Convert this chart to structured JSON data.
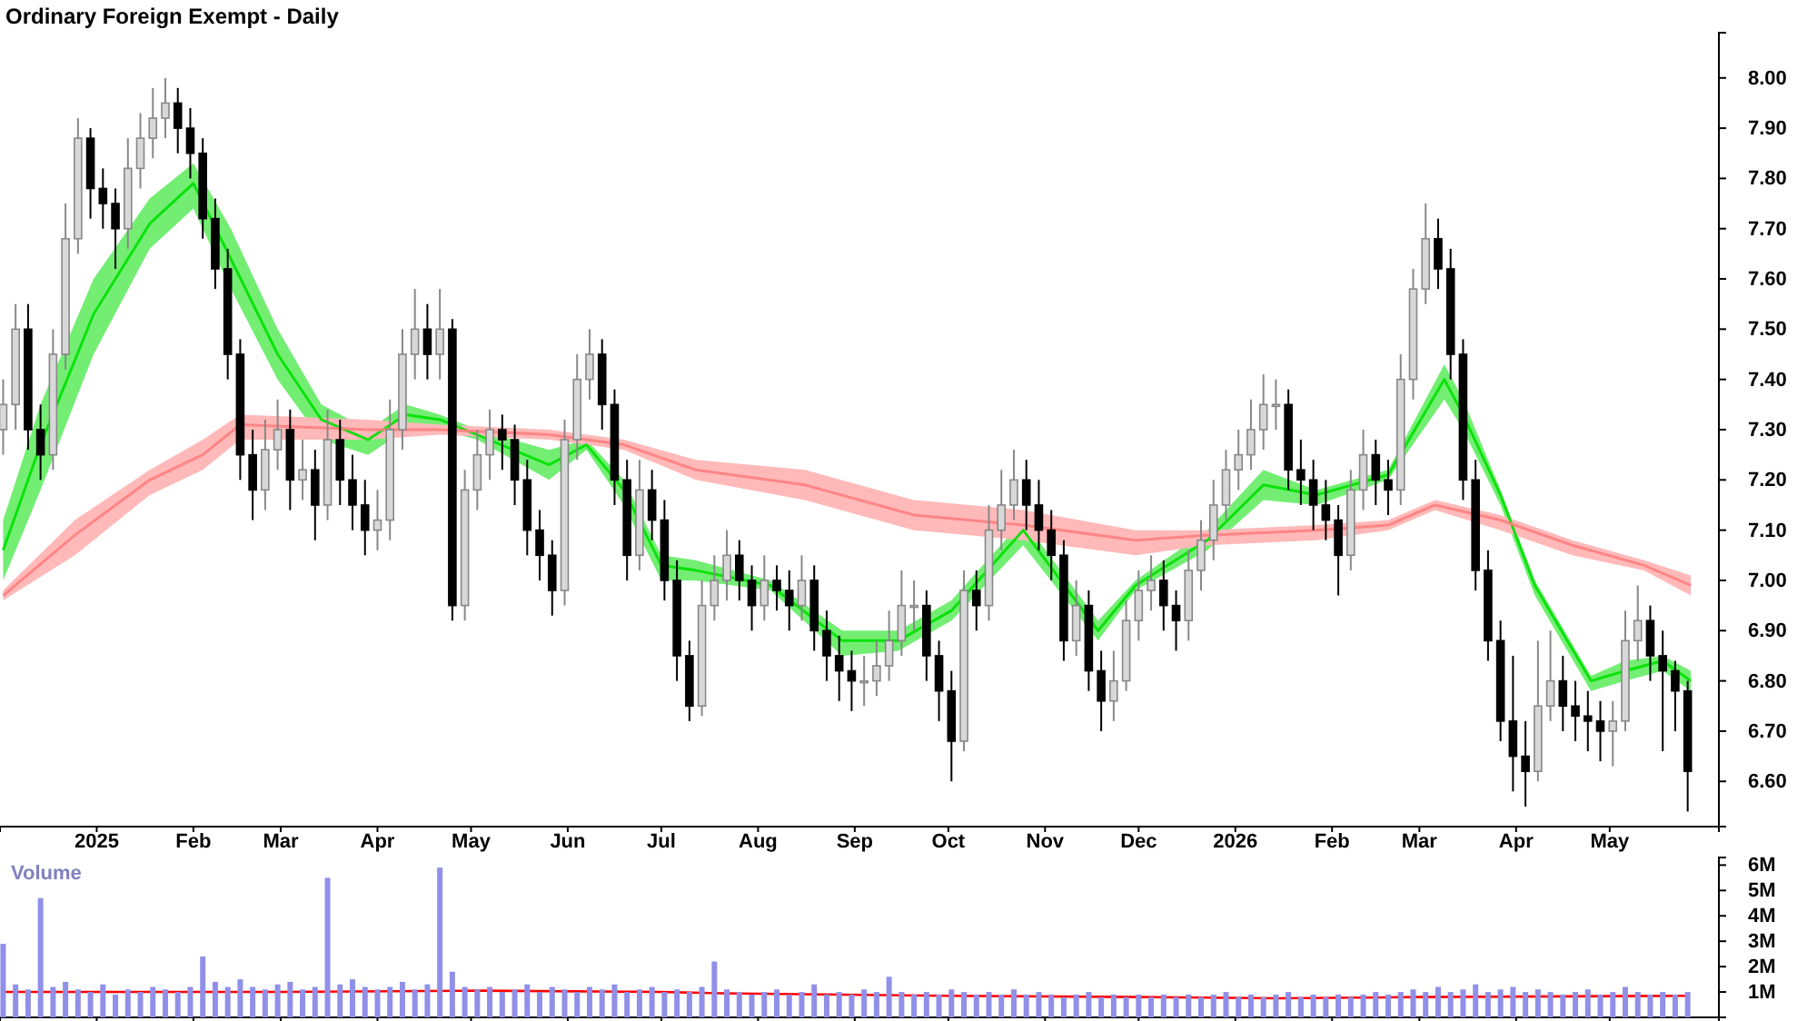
{
  "chart_data": [
    {
      "type": "candlestick",
      "title": "Ordinary Foreign Exempt - Daily",
      "x": [
        "2024-12-02",
        "2024-12-06",
        "2024-12-10",
        "2024-12-14",
        "2024-12-18",
        "2024-12-22",
        "2024-12-26",
        "2024-12-30",
        "2025-01-03",
        "2025-01-07",
        "2025-01-11",
        "2025-01-15",
        "2025-01-19",
        "2025-01-23",
        "2025-01-27",
        "2025-01-31",
        "2025-02-04",
        "2025-02-08",
        "2025-02-12",
        "2025-02-16",
        "2025-02-20",
        "2025-02-24",
        "2025-02-28",
        "2025-03-04",
        "2025-03-08",
        "2025-03-12",
        "2025-03-16",
        "2025-03-20",
        "2025-03-24",
        "2025-03-28",
        "2025-04-01",
        "2025-04-05",
        "2025-04-09",
        "2025-04-13",
        "2025-04-17",
        "2025-04-21",
        "2025-04-25",
        "2025-04-29",
        "2025-05-03",
        "2025-05-07",
        "2025-05-11",
        "2025-05-15",
        "2025-05-19",
        "2025-05-23",
        "2025-05-27",
        "2025-05-31",
        "2025-06-04",
        "2025-06-08",
        "2025-06-12",
        "2025-06-16",
        "2025-06-20",
        "2025-06-24",
        "2025-06-28",
        "2025-07-02",
        "2025-07-06",
        "2025-07-10",
        "2025-07-14",
        "2025-07-18",
        "2025-07-22",
        "2025-07-26",
        "2025-07-30",
        "2025-08-03",
        "2025-08-07",
        "2025-08-11",
        "2025-08-15",
        "2025-08-19",
        "2025-08-23",
        "2025-08-27",
        "2025-08-31",
        "2025-09-04",
        "2025-09-08",
        "2025-09-12",
        "2025-09-16",
        "2025-09-20",
        "2025-09-24",
        "2025-09-28",
        "2025-10-02",
        "2025-10-06",
        "2025-10-10",
        "2025-10-14",
        "2025-10-18",
        "2025-10-22",
        "2025-10-26",
        "2025-10-30",
        "2025-11-03",
        "2025-11-07",
        "2025-11-11",
        "2025-11-15",
        "2025-11-19",
        "2025-11-23",
        "2025-11-27",
        "2025-12-01",
        "2025-12-05",
        "2025-12-09",
        "2025-12-13",
        "2025-12-17",
        "2025-12-21",
        "2025-12-25",
        "2025-12-29",
        "2026-01-02",
        "2026-01-06",
        "2026-01-10",
        "2026-01-14",
        "2026-01-18",
        "2026-01-22",
        "2026-01-26",
        "2026-01-30",
        "2026-02-03",
        "2026-02-07",
        "2026-02-11",
        "2026-02-15",
        "2026-02-19",
        "2026-02-23",
        "2026-02-27",
        "2026-03-03",
        "2026-03-07",
        "2026-03-11",
        "2026-03-15",
        "2026-03-19",
        "2026-03-23",
        "2026-03-27",
        "2026-03-31",
        "2026-04-04",
        "2026-04-08",
        "2026-04-12",
        "2026-04-16",
        "2026-04-20",
        "2026-04-24",
        "2026-04-28",
        "2026-05-02",
        "2026-05-06",
        "2026-05-10",
        "2026-05-14",
        "2026-05-18",
        "2026-05-22",
        "2026-05-26"
      ],
      "ohlc": [
        [
          7.3,
          7.4,
          7.25,
          7.35
        ],
        [
          7.35,
          7.55,
          7.3,
          7.5
        ],
        [
          7.5,
          7.55,
          7.26,
          7.3
        ],
        [
          7.3,
          7.35,
          7.2,
          7.25
        ],
        [
          7.25,
          7.5,
          7.22,
          7.45
        ],
        [
          7.45,
          7.75,
          7.42,
          7.68
        ],
        [
          7.68,
          7.92,
          7.65,
          7.88
        ],
        [
          7.88,
          7.9,
          7.72,
          7.78
        ],
        [
          7.78,
          7.82,
          7.7,
          7.75
        ],
        [
          7.75,
          7.78,
          7.62,
          7.7
        ],
        [
          7.7,
          7.88,
          7.66,
          7.82
        ],
        [
          7.82,
          7.93,
          7.78,
          7.88
        ],
        [
          7.88,
          7.98,
          7.84,
          7.92
        ],
        [
          7.92,
          8.0,
          7.88,
          7.95
        ],
        [
          7.95,
          7.98,
          7.85,
          7.9
        ],
        [
          7.9,
          7.94,
          7.8,
          7.85
        ],
        [
          7.85,
          7.88,
          7.68,
          7.72
        ],
        [
          7.72,
          7.76,
          7.58,
          7.62
        ],
        [
          7.62,
          7.66,
          7.4,
          7.45
        ],
        [
          7.45,
          7.48,
          7.2,
          7.25
        ],
        [
          7.25,
          7.3,
          7.12,
          7.18
        ],
        [
          7.18,
          7.32,
          7.14,
          7.26
        ],
        [
          7.26,
          7.36,
          7.22,
          7.3
        ],
        [
          7.3,
          7.34,
          7.14,
          7.2
        ],
        [
          7.2,
          7.28,
          7.16,
          7.22
        ],
        [
          7.22,
          7.26,
          7.08,
          7.15
        ],
        [
          7.15,
          7.34,
          7.12,
          7.28
        ],
        [
          7.28,
          7.32,
          7.15,
          7.2
        ],
        [
          7.2,
          7.25,
          7.1,
          7.15
        ],
        [
          7.15,
          7.2,
          7.05,
          7.1
        ],
        [
          7.1,
          7.18,
          7.06,
          7.12
        ],
        [
          7.12,
          7.36,
          7.08,
          7.3
        ],
        [
          7.3,
          7.5,
          7.26,
          7.45
        ],
        [
          7.45,
          7.58,
          7.4,
          7.5
        ],
        [
          7.5,
          7.55,
          7.4,
          7.45
        ],
        [
          7.45,
          7.58,
          7.4,
          7.5
        ],
        [
          7.5,
          7.52,
          6.92,
          6.95
        ],
        [
          6.95,
          7.22,
          6.92,
          7.18
        ],
        [
          7.18,
          7.3,
          7.14,
          7.25
        ],
        [
          7.25,
          7.34,
          7.2,
          7.3
        ],
        [
          7.3,
          7.33,
          7.22,
          7.28
        ],
        [
          7.28,
          7.31,
          7.15,
          7.2
        ],
        [
          7.2,
          7.24,
          7.05,
          7.1
        ],
        [
          7.1,
          7.14,
          7.0,
          7.05
        ],
        [
          7.05,
          7.08,
          6.93,
          6.98
        ],
        [
          6.98,
          7.32,
          6.95,
          7.28
        ],
        [
          7.28,
          7.45,
          7.24,
          7.4
        ],
        [
          7.4,
          7.5,
          7.36,
          7.45
        ],
        [
          7.45,
          7.48,
          7.3,
          7.35
        ],
        [
          7.35,
          7.38,
          7.15,
          7.2
        ],
        [
          7.2,
          7.24,
          7.0,
          7.05
        ],
        [
          7.05,
          7.24,
          7.02,
          7.18
        ],
        [
          7.18,
          7.22,
          7.08,
          7.12
        ],
        [
          7.12,
          7.16,
          6.96,
          7.0
        ],
        [
          7.0,
          7.04,
          6.8,
          6.85
        ],
        [
          6.85,
          6.88,
          6.72,
          6.75
        ],
        [
          6.75,
          7.0,
          6.73,
          6.95
        ],
        [
          6.95,
          7.05,
          6.92,
          7.0
        ],
        [
          7.0,
          7.1,
          6.96,
          7.05
        ],
        [
          7.05,
          7.08,
          6.96,
          7.0
        ],
        [
          7.0,
          7.03,
          6.9,
          6.95
        ],
        [
          6.95,
          7.05,
          6.92,
          7.0
        ],
        [
          7.0,
          7.03,
          6.94,
          6.98
        ],
        [
          6.98,
          7.02,
          6.9,
          6.95
        ],
        [
          6.95,
          7.05,
          6.92,
          7.0
        ],
        [
          7.0,
          7.03,
          6.86,
          6.9
        ],
        [
          6.9,
          6.94,
          6.8,
          6.85
        ],
        [
          6.85,
          6.89,
          6.76,
          6.82
        ],
        [
          6.82,
          6.86,
          6.74,
          6.8
        ],
        [
          6.8,
          6.85,
          6.75,
          6.8
        ],
        [
          6.8,
          6.88,
          6.77,
          6.83
        ],
        [
          6.83,
          6.94,
          6.8,
          6.88
        ],
        [
          6.88,
          7.02,
          6.85,
          6.95
        ],
        [
          6.95,
          7.0,
          6.9,
          6.95
        ],
        [
          6.95,
          6.98,
          6.8,
          6.85
        ],
        [
          6.85,
          6.88,
          6.72,
          6.78
        ],
        [
          6.78,
          6.82,
          6.6,
          6.68
        ],
        [
          6.68,
          7.02,
          6.66,
          6.98
        ],
        [
          6.98,
          7.02,
          6.9,
          6.95
        ],
        [
          6.95,
          7.15,
          6.92,
          7.1
        ],
        [
          7.1,
          7.22,
          7.06,
          7.15
        ],
        [
          7.15,
          7.26,
          7.12,
          7.2
        ],
        [
          7.2,
          7.24,
          7.1,
          7.15
        ],
        [
          7.15,
          7.2,
          7.06,
          7.1
        ],
        [
          7.1,
          7.14,
          7.0,
          7.05
        ],
        [
          7.05,
          7.08,
          6.84,
          6.88
        ],
        [
          6.88,
          7.0,
          6.85,
          6.95
        ],
        [
          6.95,
          6.98,
          6.78,
          6.82
        ],
        [
          6.82,
          6.86,
          6.7,
          6.76
        ],
        [
          6.76,
          6.86,
          6.72,
          6.8
        ],
        [
          6.8,
          6.96,
          6.78,
          6.92
        ],
        [
          6.92,
          7.02,
          6.88,
          6.98
        ],
        [
          6.98,
          7.05,
          6.94,
          7.0
        ],
        [
          7.0,
          7.04,
          6.9,
          6.95
        ],
        [
          6.95,
          6.98,
          6.86,
          6.92
        ],
        [
          6.92,
          7.06,
          6.88,
          7.02
        ],
        [
          7.02,
          7.12,
          6.98,
          7.08
        ],
        [
          7.08,
          7.2,
          7.04,
          7.15
        ],
        [
          7.15,
          7.26,
          7.12,
          7.22
        ],
        [
          7.22,
          7.3,
          7.18,
          7.25
        ],
        [
          7.25,
          7.36,
          7.22,
          7.3
        ],
        [
          7.3,
          7.41,
          7.26,
          7.35
        ],
        [
          7.35,
          7.4,
          7.3,
          7.35
        ],
        [
          7.35,
          7.38,
          7.18,
          7.22
        ],
        [
          7.22,
          7.28,
          7.15,
          7.2
        ],
        [
          7.2,
          7.24,
          7.1,
          7.15
        ],
        [
          7.15,
          7.2,
          7.08,
          7.12
        ],
        [
          7.12,
          7.15,
          6.97,
          7.05
        ],
        [
          7.05,
          7.22,
          7.02,
          7.18
        ],
        [
          7.18,
          7.3,
          7.14,
          7.25
        ],
        [
          7.25,
          7.28,
          7.15,
          7.2
        ],
        [
          7.2,
          7.24,
          7.13,
          7.18
        ],
        [
          7.18,
          7.45,
          7.15,
          7.4
        ],
        [
          7.4,
          7.62,
          7.36,
          7.58
        ],
        [
          7.58,
          7.75,
          7.55,
          7.68
        ],
        [
          7.68,
          7.72,
          7.58,
          7.62
        ],
        [
          7.62,
          7.66,
          7.4,
          7.45
        ],
        [
          7.45,
          7.48,
          7.16,
          7.2
        ],
        [
          7.2,
          7.24,
          6.98,
          7.02
        ],
        [
          7.02,
          7.06,
          6.84,
          6.88
        ],
        [
          6.88,
          6.92,
          6.68,
          6.72
        ],
        [
          6.72,
          6.85,
          6.58,
          6.65
        ],
        [
          6.65,
          6.72,
          6.55,
          6.62
        ],
        [
          6.62,
          6.88,
          6.6,
          6.75
        ],
        [
          6.75,
          6.9,
          6.72,
          6.8
        ],
        [
          6.8,
          6.85,
          6.7,
          6.75
        ],
        [
          6.75,
          6.8,
          6.68,
          6.73
        ],
        [
          6.73,
          6.78,
          6.66,
          6.72
        ],
        [
          6.72,
          6.76,
          6.64,
          6.7
        ],
        [
          6.7,
          6.76,
          6.63,
          6.72
        ],
        [
          6.72,
          6.94,
          6.7,
          6.88
        ],
        [
          6.88,
          6.99,
          6.84,
          6.92
        ],
        [
          6.92,
          6.95,
          6.8,
          6.85
        ],
        [
          6.85,
          6.9,
          6.66,
          6.82
        ],
        [
          6.82,
          6.84,
          6.7,
          6.78
        ],
        [
          6.78,
          6.8,
          6.54,
          6.62
        ]
      ],
      "series": [
        {
          "type": "line",
          "color": "#00e000",
          "x": [
            "2024-12-02",
            "2024-12-14",
            "2024-12-31",
            "2025-01-18",
            "2025-02-01",
            "2025-02-13",
            "2025-02-28",
            "2025-03-14",
            "2025-03-29",
            "2025-04-10",
            "2025-04-21",
            "2025-05-03",
            "2025-05-26",
            "2025-06-07",
            "2025-06-19",
            "2025-07-01",
            "2025-07-12",
            "2025-08-05",
            "2025-08-28",
            "2025-09-15",
            "2025-10-02",
            "2025-10-25",
            "2025-11-18",
            "2025-11-30",
            "2025-12-23",
            "2026-01-10",
            "2026-01-27",
            "2026-02-19",
            "2026-03-09",
            "2026-03-15",
            "2026-03-27",
            "2026-04-07",
            "2026-04-25",
            "2026-05-06",
            "2026-05-18",
            "2026-05-27"
          ],
          "values": [
            7.06,
            7.27,
            7.53,
            7.71,
            7.79,
            7.64,
            7.45,
            7.32,
            7.28,
            7.33,
            7.32,
            7.29,
            7.23,
            7.27,
            7.18,
            7.03,
            7.02,
            6.99,
            6.88,
            6.88,
            6.94,
            7.1,
            6.9,
            6.99,
            7.08,
            7.19,
            7.17,
            7.21,
            7.4,
            7.33,
            7.17,
            6.99,
            6.8,
            6.82,
            6.84,
            6.8
          ],
          "lower": [
            7.0,
            7.18,
            7.45,
            7.66,
            7.74,
            7.58,
            7.4,
            7.28,
            7.25,
            7.3,
            7.3,
            7.28,
            7.2,
            7.26,
            7.15,
            7.0,
            7.0,
            6.98,
            6.85,
            6.86,
            6.92,
            7.07,
            6.88,
            6.98,
            7.06,
            7.16,
            7.15,
            7.2,
            7.36,
            7.3,
            7.15,
            6.97,
            6.78,
            6.8,
            6.82,
            6.78
          ],
          "upper": [
            7.12,
            7.35,
            7.6,
            7.76,
            7.83,
            7.7,
            7.5,
            7.35,
            7.3,
            7.35,
            7.33,
            7.3,
            7.26,
            7.28,
            7.2,
            7.05,
            7.04,
            7.0,
            6.9,
            6.9,
            6.96,
            7.12,
            6.92,
            7.0,
            7.1,
            7.22,
            7.18,
            7.22,
            7.43,
            7.36,
            7.18,
            7.0,
            6.81,
            6.84,
            6.85,
            6.82
          ]
        },
        {
          "type": "line",
          "color": "#ff7f7f",
          "x": [
            "2024-12-02",
            "2024-12-25",
            "2025-01-18",
            "2025-02-04",
            "2025-02-16",
            "2025-03-29",
            "2025-04-21",
            "2025-05-26",
            "2025-06-19",
            "2025-07-12",
            "2025-08-16",
            "2025-09-20",
            "2025-10-25",
            "2025-11-30",
            "2025-12-23",
            "2026-01-27",
            "2026-02-19",
            "2026-03-06",
            "2026-03-27",
            "2026-04-19",
            "2026-05-12",
            "2026-05-27"
          ],
          "values": [
            6.97,
            7.09,
            7.2,
            7.25,
            7.31,
            7.3,
            7.3,
            7.29,
            7.27,
            7.22,
            7.19,
            7.13,
            7.11,
            7.08,
            7.09,
            7.1,
            7.11,
            7.15,
            7.12,
            7.07,
            7.03,
            6.99
          ],
          "lower": [
            6.96,
            7.05,
            7.17,
            7.22,
            7.28,
            7.28,
            7.29,
            7.28,
            7.26,
            7.2,
            7.16,
            7.1,
            7.08,
            7.05,
            7.07,
            7.08,
            7.1,
            7.14,
            7.1,
            7.05,
            7.02,
            6.97
          ],
          "upper": [
            6.98,
            7.12,
            7.22,
            7.28,
            7.33,
            7.32,
            7.31,
            7.3,
            7.28,
            7.24,
            7.22,
            7.16,
            7.14,
            7.1,
            7.1,
            7.11,
            7.12,
            7.16,
            7.13,
            7.08,
            7.04,
            7.01
          ]
        }
      ],
      "xlim": [
        "2024-12-01",
        "2026-06-05"
      ],
      "xticks": [
        {
          "value": "2025-01-01",
          "label": "2025"
        },
        {
          "value": "2025-02-01",
          "label": "Feb"
        },
        {
          "value": "2025-03-01",
          "label": "Mar"
        },
        {
          "value": "2025-04-01",
          "label": "Apr"
        },
        {
          "value": "2025-05-01",
          "label": "May"
        },
        {
          "value": "2025-06-01",
          "label": "Jun"
        },
        {
          "value": "2025-07-01",
          "label": "Jul"
        },
        {
          "value": "2025-08-01",
          "label": "Aug"
        },
        {
          "value": "2025-09-01",
          "label": "Sep"
        },
        {
          "value": "2025-10-01",
          "label": "Oct"
        },
        {
          "value": "2025-11-01",
          "label": "Nov"
        },
        {
          "value": "2025-12-01",
          "label": "Dec"
        },
        {
          "value": "2026-01-01",
          "label": "2026"
        },
        {
          "value": "2026-02-01",
          "label": "Feb"
        },
        {
          "value": "2026-03-01",
          "label": "Mar"
        },
        {
          "value": "2026-04-01",
          "label": "Apr"
        },
        {
          "value": "2026-05-01",
          "label": "May"
        }
      ],
      "ylim": [
        6.51,
        8.09
      ],
      "yticks": [
        {
          "value": 6.6,
          "label": "6.60"
        },
        {
          "value": 6.7,
          "label": "6.70"
        },
        {
          "value": 6.8,
          "label": "6.80"
        },
        {
          "value": 6.9,
          "label": "6.90"
        },
        {
          "value": 7.0,
          "label": "7.00"
        },
        {
          "value": 7.1,
          "label": "7.10"
        },
        {
          "value": 7.2,
          "label": "7.20"
        },
        {
          "value": 7.3,
          "label": "7.30"
        },
        {
          "value": 7.4,
          "label": "7.40"
        },
        {
          "value": 7.5,
          "label": "7.50"
        },
        {
          "value": 7.6,
          "label": "7.60"
        },
        {
          "value": 7.7,
          "label": "7.70"
        },
        {
          "value": 7.8,
          "label": "7.80"
        },
        {
          "value": 7.9,
          "label": "7.90"
        },
        {
          "value": 8.0,
          "label": "8.00"
        }
      ]
    },
    {
      "type": "bar",
      "title": "Volume",
      "color": "#9090e8",
      "tick_labels": "y",
      "x": [
        "2024-12-02",
        "2024-12-06",
        "2024-12-10",
        "2024-12-14",
        "2024-12-18",
        "2024-12-22",
        "2024-12-26",
        "2024-12-30",
        "2025-01-03",
        "2025-01-07",
        "2025-01-11",
        "2025-01-15",
        "2025-01-19",
        "2025-01-23",
        "2025-01-27",
        "2025-01-31",
        "2025-02-04",
        "2025-02-08",
        "2025-02-12",
        "2025-02-16",
        "2025-02-20",
        "2025-02-24",
        "2025-02-28",
        "2025-03-04",
        "2025-03-08",
        "2025-03-12",
        "2025-03-16",
        "2025-03-20",
        "2025-03-24",
        "2025-03-28",
        "2025-04-01",
        "2025-04-05",
        "2025-04-09",
        "2025-04-13",
        "2025-04-17",
        "2025-04-21",
        "2025-04-25",
        "2025-04-29",
        "2025-05-03",
        "2025-05-07",
        "2025-05-11",
        "2025-05-15",
        "2025-05-19",
        "2025-05-23",
        "2025-05-27",
        "2025-05-31",
        "2025-06-04",
        "2025-06-08",
        "2025-06-12",
        "2025-06-16",
        "2025-06-20",
        "2025-06-24",
        "2025-06-28",
        "2025-07-02",
        "2025-07-06",
        "2025-07-10",
        "2025-07-14",
        "2025-07-18",
        "2025-07-22",
        "2025-07-26",
        "2025-07-30",
        "2025-08-03",
        "2025-08-07",
        "2025-08-11",
        "2025-08-15",
        "2025-08-19",
        "2025-08-23",
        "2025-08-27",
        "2025-08-31",
        "2025-09-04",
        "2025-09-08",
        "2025-09-12",
        "2025-09-16",
        "2025-09-20",
        "2025-09-24",
        "2025-09-28",
        "2025-10-02",
        "2025-10-06",
        "2025-10-10",
        "2025-10-14",
        "2025-10-18",
        "2025-10-22",
        "2025-10-26",
        "2025-10-30",
        "2025-11-03",
        "2025-11-07",
        "2025-11-11",
        "2025-11-15",
        "2025-11-19",
        "2025-11-23",
        "2025-11-27",
        "2025-12-01",
        "2025-12-05",
        "2025-12-09",
        "2025-12-13",
        "2025-12-17",
        "2025-12-21",
        "2025-12-25",
        "2025-12-29",
        "2026-01-02",
        "2026-01-06",
        "2026-01-10",
        "2026-01-14",
        "2026-01-18",
        "2026-01-22",
        "2026-01-26",
        "2026-01-30",
        "2026-02-03",
        "2026-02-07",
        "2026-02-11",
        "2026-02-15",
        "2026-02-19",
        "2026-02-23",
        "2026-02-27",
        "2026-03-03",
        "2026-03-07",
        "2026-03-11",
        "2026-03-15",
        "2026-03-19",
        "2026-03-23",
        "2026-03-27",
        "2026-03-31",
        "2026-04-04",
        "2026-04-08",
        "2026-04-12",
        "2026-04-16",
        "2026-04-20",
        "2026-04-24",
        "2026-04-28",
        "2026-05-02",
        "2026-05-06",
        "2026-05-10",
        "2026-05-14",
        "2026-05-18",
        "2026-05-22",
        "2026-05-26"
      ],
      "values": [
        2.9,
        1.3,
        1.1,
        4.7,
        1.2,
        1.4,
        1.1,
        1.0,
        1.3,
        0.9,
        1.1,
        1.0,
        1.2,
        1.1,
        1.0,
        1.2,
        2.4,
        1.4,
        1.2,
        1.5,
        1.2,
        1.1,
        1.3,
        1.4,
        1.1,
        1.2,
        5.5,
        1.3,
        1.5,
        1.2,
        1.1,
        1.2,
        1.4,
        1.1,
        1.3,
        5.9,
        1.8,
        1.2,
        1.1,
        1.2,
        1.0,
        1.1,
        1.3,
        1.0,
        1.2,
        1.1,
        1.0,
        1.2,
        1.1,
        1.3,
        1.0,
        1.1,
        1.2,
        1.0,
        1.1,
        1.0,
        1.2,
        2.2,
        1.1,
        1.0,
        0.9,
        1.0,
        1.1,
        0.9,
        1.0,
        1.3,
        0.9,
        1.0,
        0.9,
        1.1,
        1.0,
        1.6,
        1.0,
        0.9,
        1.0,
        0.9,
        1.1,
        1.0,
        0.9,
        1.0,
        0.9,
        1.1,
        0.9,
        1.0,
        0.9,
        0.8,
        0.9,
        1.0,
        0.8,
        0.9,
        0.8,
        0.9,
        0.8,
        0.9,
        0.8,
        0.9,
        0.8,
        0.9,
        1.0,
        0.8,
        0.9,
        0.8,
        0.9,
        1.0,
        0.8,
        0.9,
        0.8,
        0.9,
        0.8,
        0.9,
        1.0,
        0.9,
        1.0,
        1.1,
        1.0,
        1.2,
        1.0,
        1.1,
        1.3,
        1.0,
        1.1,
        1.2,
        1.0,
        1.1,
        1.0,
        0.9,
        1.0,
        1.1,
        0.9,
        1.0,
        1.2,
        1.0,
        0.9,
        1.0,
        0.9,
        1.0
      ],
      "series": [
        {
          "type": "line",
          "color": "#ff0000",
          "x": [
            "2024-12-02",
            "2025-03-01",
            "2025-05-03",
            "2025-07-01",
            "2025-07-20",
            "2025-10-01",
            "2025-12-01",
            "2026-01-15",
            "2026-03-01",
            "2026-05-26"
          ],
          "values": [
            1.0,
            1.0,
            1.05,
            1.0,
            0.95,
            0.85,
            0.8,
            0.75,
            0.8,
            0.85
          ]
        }
      ],
      "xlim": [
        "2024-12-01",
        "2026-06-05"
      ],
      "xticks": [
        {
          "value": "2025-01-01",
          "label": null
        },
        {
          "value": "2025-02-01",
          "label": null
        },
        {
          "value": "2025-03-01",
          "label": null
        },
        {
          "value": "2025-04-01",
          "label": null
        },
        {
          "value": "2025-05-01",
          "label": null
        },
        {
          "value": "2025-06-01",
          "label": null
        },
        {
          "value": "2025-07-01",
          "label": null
        },
        {
          "value": "2025-08-01",
          "label": null
        },
        {
          "value": "2025-09-01",
          "label": null
        },
        {
          "value": "2025-10-01",
          "label": null
        },
        {
          "value": "2025-11-01",
          "label": null
        },
        {
          "value": "2025-12-01",
          "label": null
        },
        {
          "value": "2026-01-01",
          "label": null
        },
        {
          "value": "2026-02-01",
          "label": null
        },
        {
          "value": "2026-03-01",
          "label": null
        },
        {
          "value": "2026-04-01",
          "label": null
        },
        {
          "value": "2026-05-01",
          "label": null
        }
      ],
      "ylim": [
        0,
        6.3
      ],
      "yticks": [
        {
          "value": 1,
          "label": "1M"
        },
        {
          "value": 2,
          "label": "2M"
        },
        {
          "value": 3,
          "label": "3M"
        },
        {
          "value": 4,
          "label": "4M"
        },
        {
          "value": 5,
          "label": "5M"
        },
        {
          "value": 6,
          "label": "6M"
        }
      ]
    }
  ]
}
